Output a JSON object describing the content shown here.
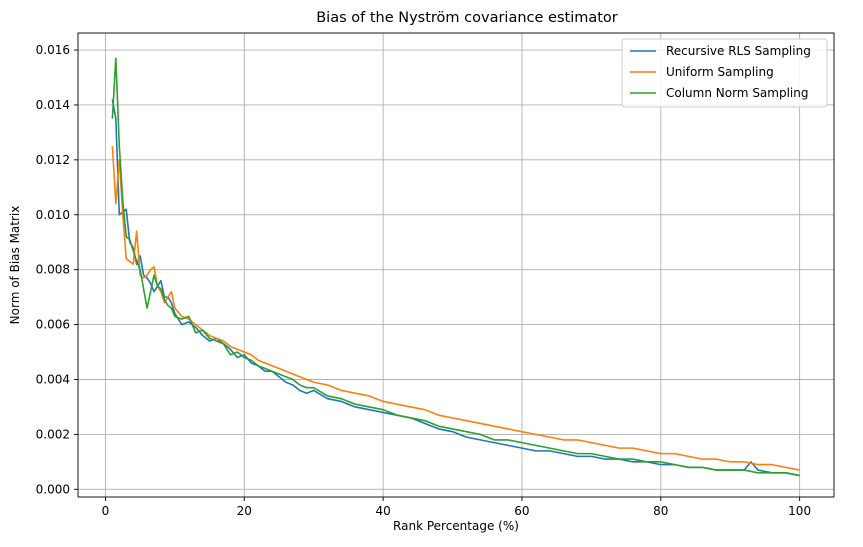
{
  "chart_data": {
    "type": "line",
    "title": "Bias of the Nyström covariance estimator",
    "xlabel": "Rank Percentage (%)",
    "ylabel": "Norm of Bias Matrix",
    "xlim": [
      -3.95,
      104.95
    ],
    "ylim": [
      -0.00028,
      0.01662
    ],
    "xticks": [
      0,
      20,
      40,
      60,
      80,
      100
    ],
    "xtick_labels": [
      "0",
      "20",
      "40",
      "60",
      "80",
      "100"
    ],
    "yticks": [
      0.0,
      0.002,
      0.004,
      0.006,
      0.008,
      0.01,
      0.012,
      0.014,
      0.016
    ],
    "ytick_labels": [
      "0.000",
      "0.002",
      "0.004",
      "0.006",
      "0.008",
      "0.010",
      "0.012",
      "0.014",
      "0.016"
    ],
    "grid": true,
    "legend_position": "top-right",
    "series": [
      {
        "name": "Recursive RLS Sampling",
        "color": "#1f77b4",
        "x": [
          1,
          1.5,
          2,
          2.5,
          3,
          3.5,
          4,
          4.5,
          5,
          5.5,
          6,
          6.5,
          7,
          7.5,
          8,
          8.5,
          9,
          9.5,
          10,
          11,
          12,
          13,
          14,
          15,
          16,
          17,
          18,
          19,
          20,
          21,
          22,
          23,
          24,
          25,
          26,
          27,
          28,
          29,
          30,
          32,
          34,
          36,
          38,
          40,
          42,
          44,
          46,
          48,
          50,
          52,
          54,
          56,
          58,
          60,
          62,
          64,
          66,
          68,
          70,
          72,
          74,
          76,
          78,
          80,
          82,
          84,
          86,
          88,
          90,
          92,
          93,
          94,
          96,
          98,
          100
        ],
        "values": [
          0.0142,
          0.0135,
          0.01,
          0.0101,
          0.0102,
          0.009,
          0.0088,
          0.0082,
          0.0085,
          0.0078,
          0.0077,
          0.0075,
          0.0072,
          0.0074,
          0.0076,
          0.007,
          0.007,
          0.0068,
          0.0064,
          0.006,
          0.0061,
          0.0059,
          0.0056,
          0.0054,
          0.0055,
          0.0053,
          0.0051,
          0.0048,
          0.0049,
          0.0046,
          0.0045,
          0.0043,
          0.0043,
          0.0041,
          0.0039,
          0.0038,
          0.0036,
          0.0035,
          0.0036,
          0.0033,
          0.0032,
          0.003,
          0.0029,
          0.0028,
          0.0027,
          0.0026,
          0.0024,
          0.0022,
          0.0021,
          0.0019,
          0.0018,
          0.0017,
          0.0016,
          0.0015,
          0.0014,
          0.0014,
          0.0013,
          0.0012,
          0.0012,
          0.0011,
          0.0011,
          0.001,
          0.001,
          0.0009,
          0.0009,
          0.0008,
          0.0008,
          0.0007,
          0.0007,
          0.0007,
          0.001,
          0.0007,
          0.0006,
          0.0006,
          0.0005
        ]
      },
      {
        "name": "Uniform Sampling",
        "color": "#ff7f0e",
        "x": [
          1,
          1.5,
          2,
          2.5,
          3,
          3.5,
          4,
          4.5,
          5,
          5.5,
          6,
          6.5,
          7,
          7.5,
          8,
          8.5,
          9,
          9.5,
          10,
          11,
          12,
          13,
          14,
          15,
          16,
          17,
          18,
          19,
          20,
          21,
          22,
          23,
          24,
          25,
          26,
          27,
          28,
          29,
          30,
          32,
          34,
          36,
          38,
          40,
          42,
          44,
          46,
          48,
          50,
          52,
          54,
          56,
          58,
          60,
          62,
          64,
          66,
          68,
          70,
          72,
          74,
          76,
          78,
          80,
          82,
          84,
          86,
          88,
          90,
          92,
          94,
          96,
          98,
          100
        ],
        "values": [
          0.0125,
          0.0104,
          0.012,
          0.01,
          0.0084,
          0.0083,
          0.0082,
          0.0094,
          0.0078,
          0.0077,
          0.0078,
          0.008,
          0.0081,
          0.0074,
          0.0072,
          0.0068,
          0.007,
          0.0072,
          0.0066,
          0.0063,
          0.0062,
          0.006,
          0.0058,
          0.0056,
          0.0055,
          0.0054,
          0.0052,
          0.0051,
          0.005,
          0.0049,
          0.0047,
          0.0046,
          0.0045,
          0.0044,
          0.0043,
          0.0042,
          0.0041,
          0.004,
          0.0039,
          0.0038,
          0.0036,
          0.0035,
          0.0034,
          0.0032,
          0.0031,
          0.003,
          0.0029,
          0.0027,
          0.0026,
          0.0025,
          0.0024,
          0.0023,
          0.0022,
          0.0021,
          0.002,
          0.0019,
          0.0018,
          0.0018,
          0.0017,
          0.0016,
          0.0015,
          0.0015,
          0.0014,
          0.0013,
          0.0013,
          0.0012,
          0.0011,
          0.0011,
          0.001,
          0.001,
          0.0009,
          0.0009,
          0.0008,
          0.0007
        ]
      },
      {
        "name": "Column Norm Sampling",
        "color": "#2ca02c",
        "x": [
          1,
          1.5,
          2,
          2.5,
          3,
          3.5,
          4,
          4.5,
          5,
          5.5,
          6,
          6.5,
          7,
          7.5,
          8,
          8.5,
          9,
          9.5,
          10,
          11,
          12,
          13,
          14,
          15,
          16,
          17,
          18,
          19,
          20,
          21,
          22,
          23,
          24,
          25,
          26,
          27,
          28,
          29,
          30,
          32,
          34,
          36,
          38,
          40,
          42,
          44,
          46,
          48,
          50,
          52,
          54,
          56,
          58,
          60,
          62,
          64,
          66,
          68,
          70,
          72,
          74,
          76,
          78,
          80,
          82,
          84,
          86,
          88,
          90,
          92,
          94,
          96,
          98,
          100
        ],
        "values": [
          0.0135,
          0.0157,
          0.0125,
          0.0105,
          0.0092,
          0.0091,
          0.0087,
          0.0083,
          0.008,
          0.0073,
          0.0066,
          0.0072,
          0.0078,
          0.0074,
          0.0073,
          0.0069,
          0.0067,
          0.0066,
          0.0063,
          0.0062,
          0.0063,
          0.0057,
          0.0058,
          0.0055,
          0.0054,
          0.0053,
          0.0049,
          0.005,
          0.0048,
          0.0047,
          0.0045,
          0.0044,
          0.0043,
          0.0042,
          0.0041,
          0.004,
          0.0038,
          0.0037,
          0.0037,
          0.0034,
          0.0033,
          0.0031,
          0.003,
          0.0029,
          0.0027,
          0.0026,
          0.0025,
          0.0023,
          0.0022,
          0.0021,
          0.002,
          0.0018,
          0.0018,
          0.0017,
          0.0016,
          0.0015,
          0.0014,
          0.0013,
          0.0013,
          0.0012,
          0.0011,
          0.0011,
          0.001,
          0.001,
          0.0009,
          0.0008,
          0.0008,
          0.0007,
          0.0007,
          0.0007,
          0.0006,
          0.0006,
          0.0006,
          0.0005
        ]
      }
    ]
  }
}
